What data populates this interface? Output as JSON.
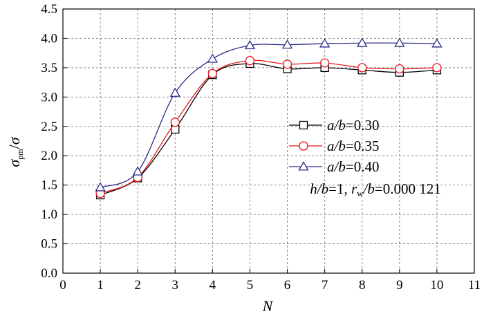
{
  "chart_data": {
    "type": "line",
    "x": [
      1,
      2,
      3,
      4,
      5,
      6,
      7,
      8,
      9,
      10
    ],
    "xlim": [
      0,
      11
    ],
    "ylim": [
      0,
      4.5
    ],
    "xticks": [
      "0",
      "1",
      "2",
      "3",
      "4",
      "5",
      "6",
      "7",
      "8",
      "9",
      "10",
      "11"
    ],
    "yticks": [
      "0.0",
      "0.5",
      "1.0",
      "1.5",
      "2.0",
      "2.5",
      "3.0",
      "3.5",
      "4.0",
      "4.5"
    ],
    "xlabel": "N",
    "ylabel": "σ_pm/σ",
    "grid": true,
    "legend_position": "right-center",
    "series": [
      {
        "name_var": "a/b",
        "name_val": "0.30",
        "marker": "square",
        "color": "#000000",
        "values": [
          1.33,
          1.62,
          2.45,
          3.38,
          3.57,
          3.48,
          3.5,
          3.46,
          3.42,
          3.46
        ]
      },
      {
        "name_var": "a/b",
        "name_val": "0.35",
        "marker": "circle",
        "color": "#e8141a",
        "values": [
          1.36,
          1.63,
          2.57,
          3.4,
          3.62,
          3.56,
          3.58,
          3.5,
          3.48,
          3.5
        ]
      },
      {
        "name_var": "a/b",
        "name_val": "0.40",
        "marker": "triangle",
        "color": "#2b2c8c",
        "values": [
          1.46,
          1.73,
          3.07,
          3.65,
          3.88,
          3.89,
          3.91,
          3.92,
          3.92,
          3.91
        ]
      }
    ],
    "annotation": {
      "h_var": "h/b",
      "h_val": "1",
      "r_var": "r",
      "r_sub": "w",
      "r_den": "/b",
      "r_val": "0.000 121"
    }
  }
}
